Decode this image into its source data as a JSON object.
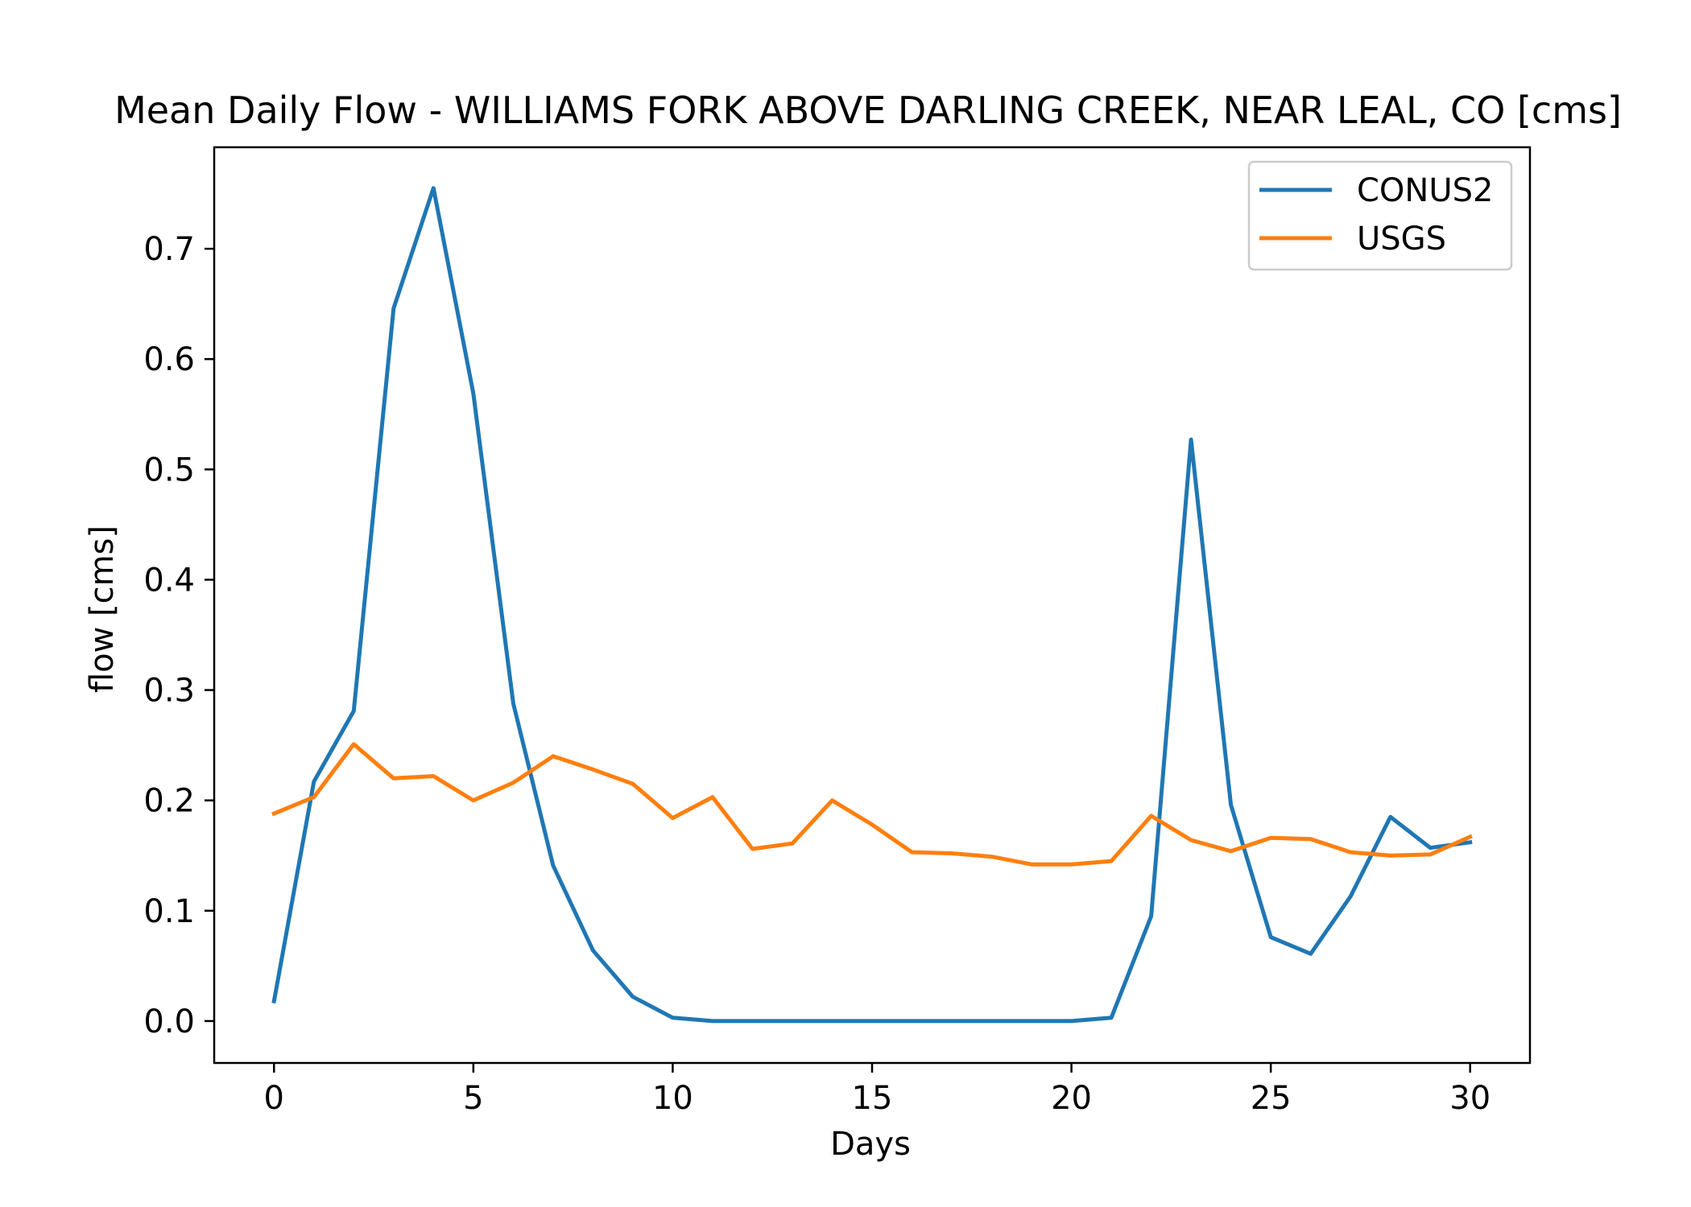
{
  "chart_data": {
    "type": "line",
    "title": "Mean Daily Flow - WILLIAMS FORK ABOVE DARLING CREEK, NEAR LEAL, CO [cms]",
    "xlabel": "Days",
    "ylabel": "flow [cms]",
    "xlim": [
      -1.5,
      31.5
    ],
    "ylim": [
      -0.038,
      0.792
    ],
    "x_ticks": [
      0,
      5,
      10,
      15,
      20,
      25,
      30
    ],
    "y_ticks": [
      0.0,
      0.1,
      0.2,
      0.3,
      0.4,
      0.5,
      0.6,
      0.7
    ],
    "x_tick_labels": [
      "0",
      "5",
      "10",
      "15",
      "20",
      "25",
      "30"
    ],
    "y_tick_labels": [
      "0.0",
      "0.1",
      "0.2",
      "0.3",
      "0.4",
      "0.5",
      "0.6",
      "0.7"
    ],
    "grid": false,
    "legend_position": "upper right",
    "x": [
      0,
      1,
      2,
      3,
      4,
      5,
      6,
      7,
      8,
      9,
      10,
      11,
      12,
      13,
      14,
      15,
      16,
      17,
      18,
      19,
      20,
      21,
      22,
      23,
      24,
      25,
      26,
      27,
      28,
      29,
      30
    ],
    "series": [
      {
        "name": "CONUS2",
        "color": "#1f77b4",
        "values": [
          0.018,
          0.217,
          0.281,
          0.646,
          0.755,
          0.569,
          0.288,
          0.141,
          0.064,
          0.022,
          0.003,
          0.0,
          0.0,
          0.0,
          0.0,
          0.0,
          0.0,
          0.0,
          0.0,
          0.0,
          0.0,
          0.003,
          0.095,
          0.527,
          0.196,
          0.076,
          0.061,
          0.113,
          0.185,
          0.157,
          0.162
        ]
      },
      {
        "name": "USGS",
        "color": "#ff7f0e",
        "values": [
          0.188,
          0.203,
          0.251,
          0.22,
          0.222,
          0.2,
          0.216,
          0.24,
          0.228,
          0.215,
          0.184,
          0.203,
          0.156,
          0.161,
          0.2,
          0.178,
          0.153,
          0.152,
          0.149,
          0.142,
          0.142,
          0.145,
          0.186,
          0.164,
          0.154,
          0.166,
          0.165,
          0.153,
          0.15,
          0.151,
          0.167
        ]
      }
    ]
  }
}
